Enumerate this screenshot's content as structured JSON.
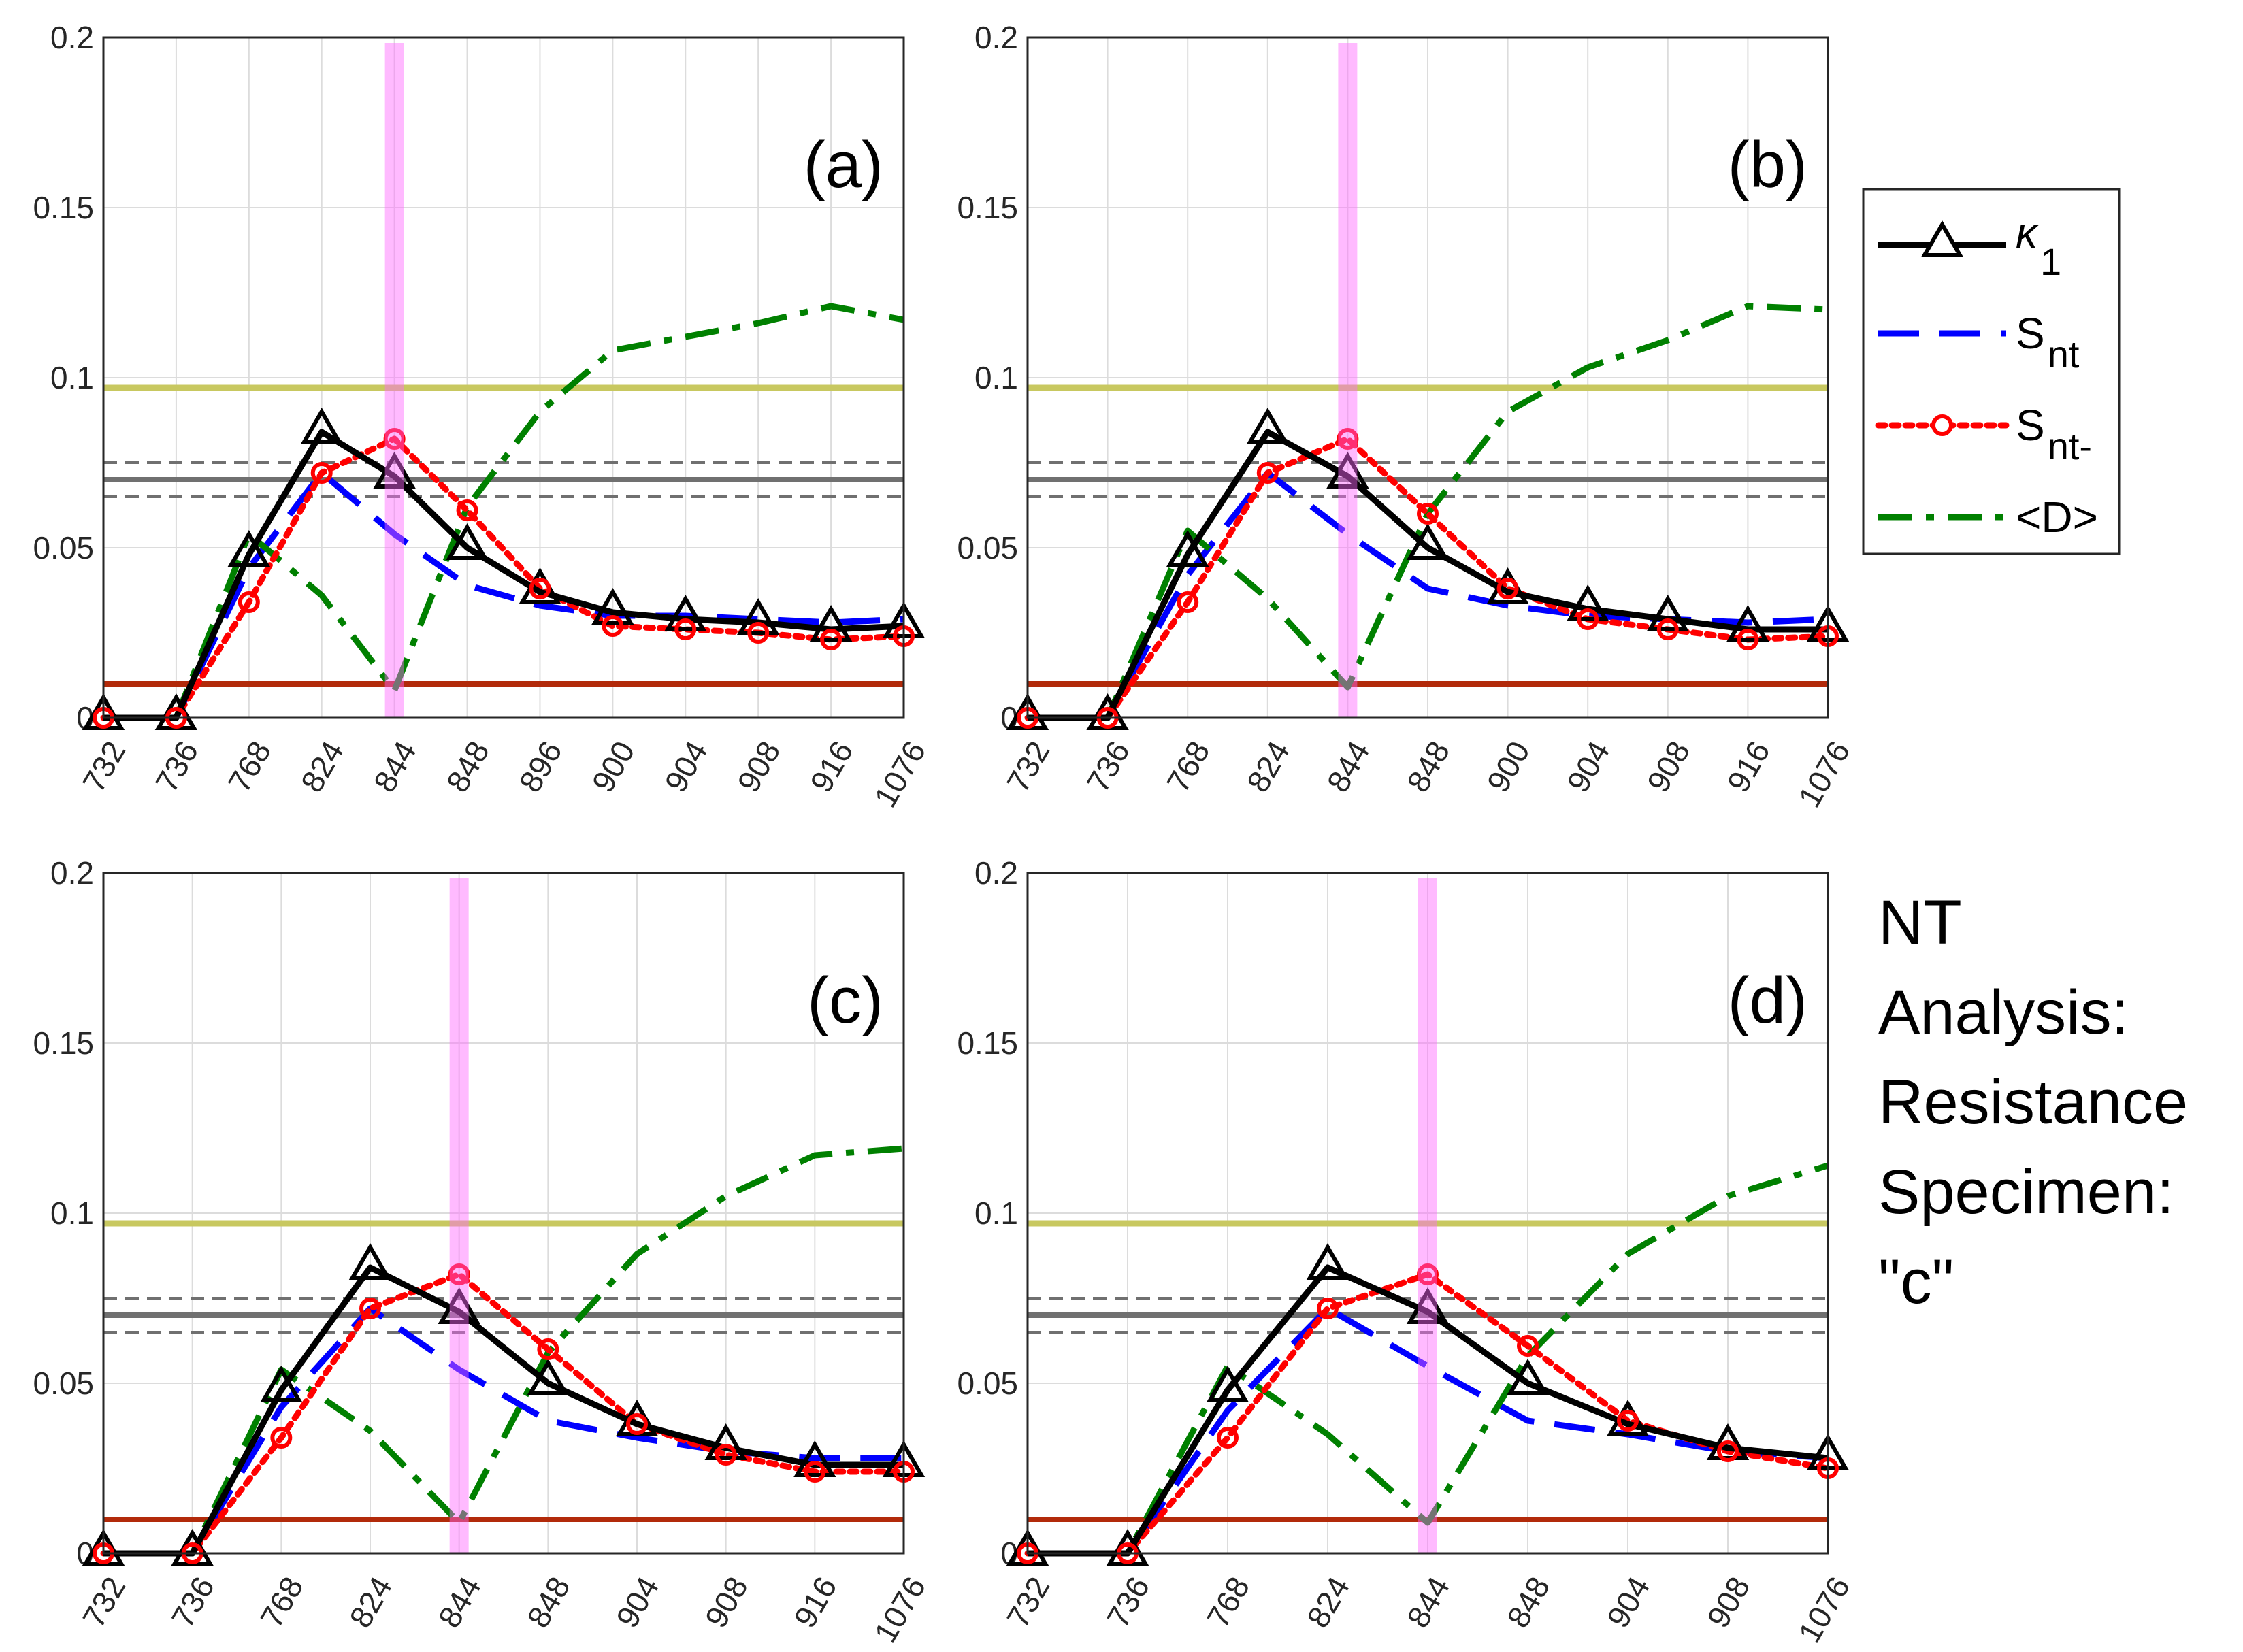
{
  "figure_note": [
    "NT",
    "Analysis:",
    "Resistance",
    "Specimen:",
    "\"c\""
  ],
  "legend": [
    {
      "key": "k1",
      "label": "κ",
      "sub": "1",
      "color": "#000000",
      "style": "solid-hexagram"
    },
    {
      "key": "snt",
      "label": "S",
      "sub": "nt",
      "color": "#0000ff",
      "style": "dashed"
    },
    {
      "key": "sntm",
      "label": "S",
      "sub": "nt-",
      "color": "#ff0000",
      "style": "dotted-circle"
    },
    {
      "key": "D",
      "label": "<D>",
      "sub": "",
      "color": "#008000",
      "style": "dashdot"
    }
  ],
  "colors": {
    "yellow_line": "#c8c860",
    "gray_line": "#707070",
    "gray_dashed": "#707070",
    "red_line": "#b22a0a",
    "highlight": "#ff66ff",
    "grid": "#dcdcdc"
  },
  "chart_data": [
    {
      "type": "line",
      "panel": "(a)",
      "categories": [
        "732",
        "736",
        "768",
        "824",
        "844",
        "848",
        "896",
        "900",
        "904",
        "908",
        "916",
        "1076"
      ],
      "yticks": [
        "0",
        "0.05",
        "0.1",
        "0.15",
        "0.2"
      ],
      "ylim": [
        0,
        0.2
      ],
      "highlight_index": 4,
      "hlines": {
        "yellow": 0.097,
        "gray": 0.07,
        "gray_dashed": [
          0.075,
          0.065
        ],
        "red": 0.01
      },
      "series": [
        {
          "key": "k1",
          "values": [
            0,
            0,
            0.048,
            0.084,
            0.071,
            0.05,
            0.037,
            0.031,
            0.029,
            0.028,
            0.026,
            0.027
          ]
        },
        {
          "key": "snt",
          "values": [
            0,
            0,
            0.044,
            0.072,
            0.054,
            0.039,
            0.033,
            0.03,
            0.03,
            0.029,
            0.028,
            0.029
          ]
        },
        {
          "key": "sntm",
          "values": [
            0,
            0,
            0.034,
            0.072,
            0.082,
            0.061,
            0.038,
            0.027,
            0.026,
            0.025,
            0.023,
            0.024
          ]
        },
        {
          "key": "D",
          "values": [
            0,
            0,
            0.054,
            0.036,
            0.008,
            0.062,
            0.09,
            0.108,
            0.112,
            0.116,
            0.121,
            0.117
          ]
        }
      ]
    },
    {
      "type": "line",
      "panel": "(b)",
      "categories": [
        "732",
        "736",
        "768",
        "824",
        "844",
        "848",
        "900",
        "904",
        "908",
        "916",
        "1076"
      ],
      "yticks": [
        "0",
        "0.05",
        "0.1",
        "0.15",
        "0.2"
      ],
      "ylim": [
        0,
        0.2
      ],
      "highlight_index": 4,
      "hlines": {
        "yellow": 0.097,
        "gray": 0.07,
        "gray_dashed": [
          0.075,
          0.065
        ],
        "red": 0.01
      },
      "series": [
        {
          "key": "k1",
          "values": [
            0,
            0,
            0.048,
            0.084,
            0.071,
            0.05,
            0.037,
            0.032,
            0.029,
            0.026,
            0.026
          ]
        },
        {
          "key": "snt",
          "values": [
            0,
            0,
            0.042,
            0.072,
            0.054,
            0.038,
            0.033,
            0.03,
            0.029,
            0.028,
            0.029
          ]
        },
        {
          "key": "sntm",
          "values": [
            0,
            0,
            0.034,
            0.072,
            0.082,
            0.06,
            0.038,
            0.029,
            0.026,
            0.023,
            0.024
          ]
        },
        {
          "key": "D",
          "values": [
            0,
            0,
            0.055,
            0.035,
            0.009,
            0.06,
            0.09,
            0.103,
            0.111,
            0.121,
            0.12
          ]
        }
      ]
    },
    {
      "type": "line",
      "panel": "(c)",
      "categories": [
        "732",
        "736",
        "768",
        "824",
        "844",
        "848",
        "904",
        "908",
        "916",
        "1076"
      ],
      "yticks": [
        "0",
        "0.05",
        "0.1",
        "0.15",
        "0.2"
      ],
      "ylim": [
        0,
        0.2
      ],
      "highlight_index": 4,
      "hlines": {
        "yellow": 0.097,
        "gray": 0.07,
        "gray_dashed": [
          0.075,
          0.065
        ],
        "red": 0.01
      },
      "series": [
        {
          "key": "k1",
          "values": [
            0,
            0,
            0.048,
            0.084,
            0.071,
            0.05,
            0.038,
            0.031,
            0.026,
            0.026
          ]
        },
        {
          "key": "snt",
          "values": [
            0,
            0,
            0.043,
            0.072,
            0.054,
            0.039,
            0.034,
            0.03,
            0.028,
            0.028
          ]
        },
        {
          "key": "sntm",
          "values": [
            0,
            0,
            0.034,
            0.072,
            0.082,
            0.06,
            0.038,
            0.029,
            0.024,
            0.024
          ]
        },
        {
          "key": "D",
          "values": [
            0,
            0,
            0.054,
            0.036,
            0.009,
            0.059,
            0.088,
            0.105,
            0.117,
            0.119
          ]
        }
      ]
    },
    {
      "type": "line",
      "panel": "(d)",
      "categories": [
        "732",
        "736",
        "768",
        "824",
        "844",
        "848",
        "904",
        "908",
        "1076"
      ],
      "yticks": [
        "0",
        "0.05",
        "0.1",
        "0.15",
        "0.2"
      ],
      "ylim": [
        0,
        0.2
      ],
      "highlight_index": 4,
      "hlines": {
        "yellow": 0.097,
        "gray": 0.07,
        "gray_dashed": [
          0.075,
          0.065
        ],
        "red": 0.01
      },
      "series": [
        {
          "key": "k1",
          "values": [
            0,
            0,
            0.048,
            0.084,
            0.071,
            0.05,
            0.038,
            0.031,
            0.028
          ]
        },
        {
          "key": "snt",
          "values": [
            0,
            0,
            0.042,
            0.072,
            0.055,
            0.039,
            0.035,
            0.03,
            0.028
          ]
        },
        {
          "key": "sntm",
          "values": [
            0,
            0,
            0.034,
            0.072,
            0.082,
            0.061,
            0.039,
            0.03,
            0.025
          ]
        },
        {
          "key": "D",
          "values": [
            0,
            0,
            0.055,
            0.035,
            0.009,
            0.058,
            0.088,
            0.105,
            0.114
          ]
        }
      ]
    }
  ]
}
